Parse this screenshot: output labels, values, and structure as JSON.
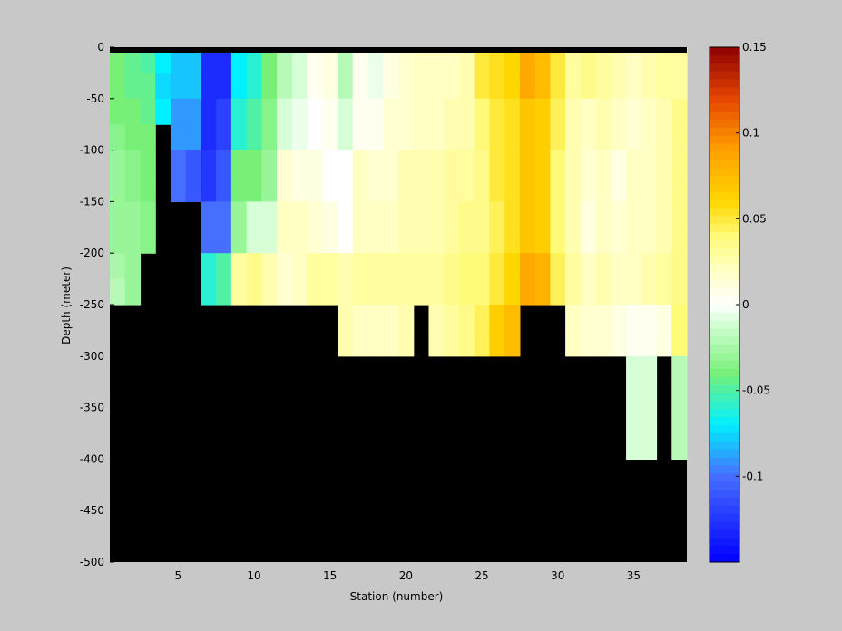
{
  "chart_data": {
    "type": "heatmap",
    "title": "",
    "xlabel": "Station (number)",
    "ylabel": "Depth (meter)",
    "xlim": [
      1,
      38
    ],
    "ylim": [
      -500,
      0
    ],
    "x_ticks": [
      5,
      10,
      15,
      20,
      25,
      30,
      35
    ],
    "y_ticks": [
      0,
      -50,
      -100,
      -150,
      -200,
      -250,
      -300,
      -350,
      -400,
      -450,
      -500
    ],
    "colorbar": {
      "range": [
        -0.15,
        0.15
      ],
      "ticks": [
        0.15,
        0.1,
        0.05,
        0,
        -0.05,
        -0.1
      ],
      "tick_labels": [
        "0.15",
        "0.1",
        "0.05",
        "0",
        "-0.05",
        "-0.1"
      ],
      "colormap": "blue-cyan-green-white-yellow-orange-darkred"
    },
    "mask_color": "#000000",
    "grid": false,
    "stations": [
      1,
      2,
      3,
      4,
      5,
      6,
      7,
      8,
      9,
      10,
      11,
      12,
      13,
      14,
      15,
      16,
      17,
      18,
      19,
      20,
      21,
      22,
      23,
      24,
      25,
      26,
      27,
      28,
      29,
      30,
      31,
      32,
      33,
      34,
      35,
      36,
      37,
      38
    ],
    "depth_levels": [
      0,
      -25,
      -50,
      -75,
      -100,
      -125,
      -150,
      -175,
      -200,
      -225,
      -250,
      -275,
      -300,
      -325,
      -350,
      -375,
      -400
    ],
    "max_depth": [
      -250,
      -250,
      -200,
      -75,
      -150,
      -150,
      -250,
      -250,
      -250,
      -250,
      -250,
      -250,
      -250,
      -250,
      -250,
      -300,
      -300,
      -300,
      -300,
      -300,
      -250,
      -300,
      -300,
      -300,
      -300,
      -300,
      -300,
      -250,
      -250,
      -250,
      -300,
      -300,
      -300,
      -300,
      -400,
      -400,
      -300,
      -400
    ],
    "values": [
      [
        -0.04,
        -0.04,
        -0.04,
        -0.035,
        -0.03,
        -0.03,
        -0.03,
        -0.03,
        -0.025,
        -0.02
      ],
      [
        -0.045,
        -0.045,
        -0.04,
        -0.04,
        -0.035,
        -0.035,
        -0.03,
        -0.03,
        -0.03,
        -0.03
      ],
      [
        -0.05,
        -0.045,
        -0.045,
        -0.04,
        -0.04,
        -0.04,
        -0.035,
        -0.035
      ],
      [
        -0.07,
        -0.075,
        -0.07
      ],
      [
        -0.08,
        -0.08,
        -0.09,
        -0.09,
        -0.1,
        -0.1
      ],
      [
        -0.08,
        -0.08,
        -0.09,
        -0.09,
        -0.11,
        -0.11
      ],
      [
        -0.13,
        -0.13,
        -0.13,
        -0.13,
        -0.125,
        -0.125,
        -0.1,
        -0.1,
        -0.06,
        -0.06
      ],
      [
        -0.13,
        -0.13,
        -0.12,
        -0.12,
        -0.11,
        -0.11,
        -0.1,
        -0.1,
        -0.05,
        -0.05
      ],
      [
        -0.07,
        -0.07,
        -0.06,
        -0.06,
        -0.04,
        -0.04,
        -0.03,
        -0.03,
        0.03,
        0.03
      ],
      [
        -0.06,
        -0.06,
        -0.05,
        -0.05,
        -0.04,
        -0.04,
        -0.01,
        -0.01,
        0.035,
        0.035
      ],
      [
        -0.04,
        -0.04,
        -0.035,
        -0.035,
        -0.03,
        -0.03,
        -0.01,
        -0.01,
        0.025,
        0.025
      ],
      [
        -0.02,
        -0.02,
        -0.01,
        -0.01,
        0.015,
        0.015,
        0.02,
        0.02,
        0.015,
        0.015
      ],
      [
        -0.01,
        -0.01,
        -0.005,
        -0.005,
        0.01,
        0.01,
        0.02,
        0.02,
        0.02,
        0.02
      ],
      [
        0.005,
        0.005,
        0.0,
        0.0,
        0.01,
        0.01,
        0.015,
        0.015,
        0.03,
        0.03
      ],
      [
        0.01,
        0.01,
        0.005,
        0.005,
        0.0,
        0.0,
        0.01,
        0.01,
        0.03,
        0.03
      ],
      [
        -0.02,
        -0.02,
        -0.01,
        -0.01,
        0.0,
        0.0,
        0.0,
        0.0,
        0.025,
        0.025,
        0.025,
        0.025
      ],
      [
        0.005,
        0.005,
        0.005,
        0.005,
        0.02,
        0.02,
        0.02,
        0.02,
        0.03,
        0.03,
        0.02,
        0.02
      ],
      [
        -0.005,
        -0.005,
        0.005,
        0.005,
        0.015,
        0.015,
        0.02,
        0.02,
        0.03,
        0.03,
        0.02,
        0.02
      ],
      [
        0.01,
        0.01,
        0.015,
        0.015,
        0.015,
        0.015,
        0.02,
        0.02,
        0.03,
        0.03,
        0.02,
        0.02
      ],
      [
        0.015,
        0.015,
        0.015,
        0.015,
        0.025,
        0.025,
        0.025,
        0.025,
        0.03,
        0.03,
        0.025,
        0.025
      ],
      [
        0.02,
        0.02,
        0.02,
        0.02,
        0.025,
        0.025,
        0.025,
        0.025,
        0.03,
        0.03
      ],
      [
        0.02,
        0.02,
        0.02,
        0.02,
        0.025,
        0.025,
        0.025,
        0.025,
        0.03,
        0.03,
        0.025,
        0.025
      ],
      [
        0.02,
        0.02,
        0.025,
        0.025,
        0.03,
        0.03,
        0.03,
        0.03,
        0.035,
        0.035,
        0.03,
        0.03
      ],
      [
        0.025,
        0.025,
        0.025,
        0.025,
        0.03,
        0.03,
        0.035,
        0.035,
        0.04,
        0.04,
        0.035,
        0.035
      ],
      [
        0.05,
        0.05,
        0.04,
        0.04,
        0.035,
        0.035,
        0.035,
        0.035,
        0.04,
        0.04,
        0.045,
        0.045
      ],
      [
        0.055,
        0.055,
        0.05,
        0.05,
        0.05,
        0.05,
        0.045,
        0.045,
        0.05,
        0.05,
        0.065,
        0.065
      ],
      [
        0.06,
        0.06,
        0.055,
        0.055,
        0.055,
        0.055,
        0.055,
        0.055,
        0.06,
        0.06,
        0.075,
        0.075
      ],
      [
        0.085,
        0.085,
        0.07,
        0.07,
        0.07,
        0.07,
        0.07,
        0.07,
        0.085,
        0.085
      ],
      [
        0.075,
        0.075,
        0.065,
        0.065,
        0.065,
        0.065,
        0.065,
        0.065,
        0.08,
        0.08
      ],
      [
        0.05,
        0.05,
        0.045,
        0.045,
        0.04,
        0.04,
        0.04,
        0.04,
        0.045,
        0.045
      ],
      [
        0.03,
        0.03,
        0.025,
        0.025,
        0.025,
        0.025,
        0.025,
        0.025,
        0.03,
        0.03,
        0.02,
        0.02
      ],
      [
        0.035,
        0.035,
        0.02,
        0.02,
        0.015,
        0.015,
        0.01,
        0.01,
        0.02,
        0.02,
        0.015,
        0.015
      ],
      [
        0.03,
        0.03,
        0.025,
        0.025,
        0.02,
        0.02,
        0.02,
        0.02,
        0.025,
        0.025,
        0.015,
        0.015
      ],
      [
        0.025,
        0.025,
        0.02,
        0.02,
        0.01,
        0.01,
        0.015,
        0.015,
        0.02,
        0.02,
        0.01,
        0.01
      ],
      [
        0.02,
        0.02,
        0.015,
        0.015,
        0.02,
        0.02,
        0.02,
        0.02,
        0.02,
        0.02,
        0.005,
        0.005,
        -0.01,
        -0.01,
        -0.01,
        -0.01
      ],
      [
        0.025,
        0.025,
        0.02,
        0.02,
        0.02,
        0.02,
        0.02,
        0.02,
        0.025,
        0.025,
        0.005,
        0.005,
        -0.01,
        -0.01,
        -0.01,
        -0.01
      ],
      [
        0.03,
        0.03,
        0.025,
        0.025,
        0.025,
        0.025,
        0.025,
        0.025,
        0.03,
        0.03,
        0.01,
        0.01
      ],
      [
        0.03,
        0.03,
        0.035,
        0.035,
        0.035,
        0.035,
        0.035,
        0.035,
        0.035,
        0.035,
        0.04,
        0.04,
        -0.02,
        -0.02,
        -0.02,
        -0.02
      ]
    ]
  }
}
